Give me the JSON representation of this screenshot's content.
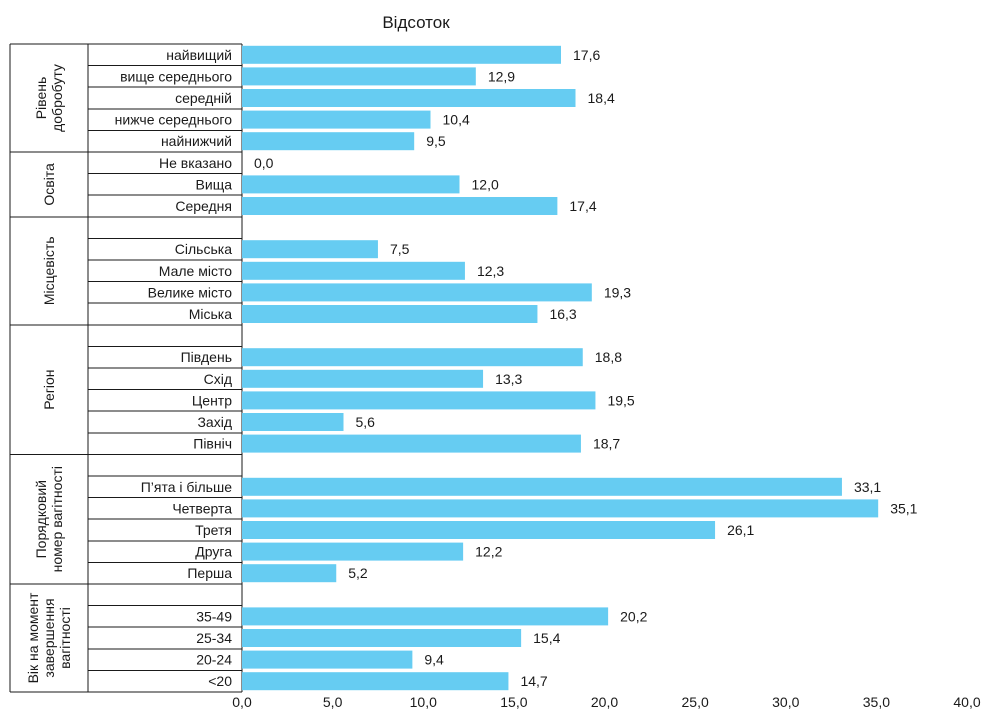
{
  "colors": {
    "bar": "#66ccf2",
    "text": "#1a1a1a",
    "lines": "#1a1a1a"
  },
  "chart_data": {
    "type": "bar",
    "orientation": "horizontal",
    "title": "Відсоток",
    "xlim": [
      0,
      40
    ],
    "xticks": [
      0,
      5,
      10,
      15,
      20,
      25,
      30,
      35,
      40
    ],
    "tick_labels": [
      "0,0",
      "5,0",
      "10,0",
      "15,0",
      "20,0",
      "25,0",
      "30,0",
      "35,0",
      "40,0"
    ],
    "grid": false,
    "legend": "none",
    "groups": [
      {
        "name": "Рівень добробуту",
        "categories": [
          "найвищий",
          "вище середнього",
          "середній",
          "нижче середнього",
          "найнижчий"
        ],
        "values": [
          17.6,
          12.9,
          18.4,
          10.4,
          9.5
        ],
        "value_labels": [
          "17,6",
          "12,9",
          "18,4",
          "10,4",
          "9,5"
        ]
      },
      {
        "name": "Освіта",
        "categories": [
          "Не вказано",
          "Вища",
          "Середня"
        ],
        "values": [
          0.0,
          12.0,
          17.4
        ],
        "value_labels": [
          "0,0",
          "12,0",
          "17,4"
        ]
      },
      {
        "name": "Місцевість",
        "categories": [
          "",
          "Сільська",
          "Мале місто",
          "Велике місто",
          "Міська"
        ],
        "values": [
          null,
          7.5,
          12.3,
          19.3,
          16.3
        ],
        "value_labels": [
          "",
          "7,5",
          "12,3",
          "19,3",
          "16,3"
        ]
      },
      {
        "name": "Регіон",
        "categories": [
          "",
          "Південь",
          "Схід",
          "Центр",
          "Захід",
          "Північ"
        ],
        "values": [
          null,
          18.8,
          13.3,
          19.5,
          5.6,
          18.7
        ],
        "value_labels": [
          "",
          "18,8",
          "13,3",
          "19,5",
          "5,6",
          "18,7"
        ]
      },
      {
        "name": "Порядковий номер вагітності",
        "categories": [
          "",
          "П’ята і більше",
          "Четверта",
          "Третя",
          "Друга",
          "Перша"
        ],
        "values": [
          null,
          33.1,
          35.1,
          26.1,
          12.2,
          5.2
        ],
        "value_labels": [
          "",
          "33,1",
          "35,1",
          "26,1",
          "12,2",
          "5,2"
        ]
      },
      {
        "name": "Вік на момент завершення вагітності",
        "categories": [
          "",
          "35-49",
          "25-34",
          "20-24",
          "<20"
        ],
        "values": [
          null,
          20.2,
          15.4,
          9.4,
          14.7
        ],
        "value_labels": [
          "",
          "20,2",
          "15,4",
          "9,4",
          "14,7"
        ]
      }
    ]
  }
}
